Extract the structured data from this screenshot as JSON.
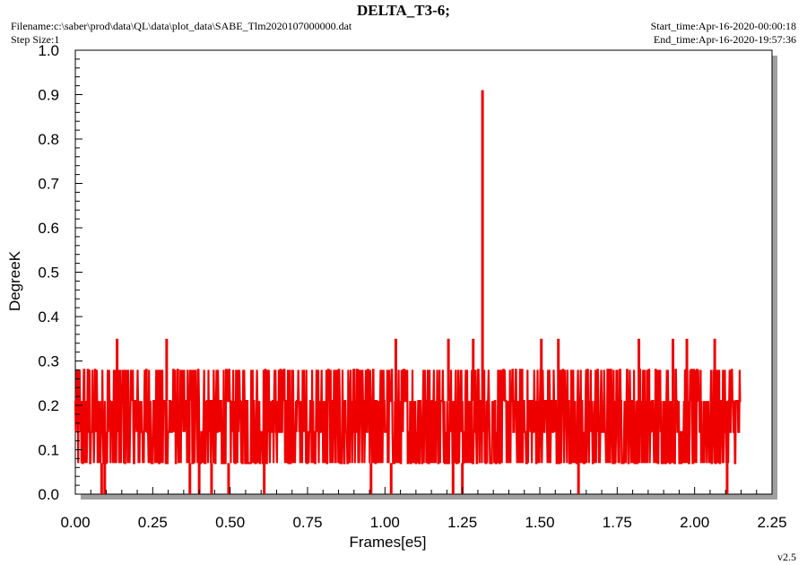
{
  "header": {
    "title": "DELTA_T3-6;",
    "filename": "Filename:c:\\saber\\prod\\data\\QL\\data\\plot_data\\SABE_Tlm2020107000000.dat",
    "step_size": "Step Size:1",
    "start_time": "Start_time:Apr-16-2020-00:00:18",
    "end_time": "End_time:Apr-16-2020-19:57:36",
    "version": "v2.5"
  },
  "colors": {
    "series": "#ee0000",
    "plot_shadow": "#a0a0a0",
    "axis": "#000000"
  },
  "chart_data": {
    "type": "line",
    "title": "DELTA_T3-6;",
    "xlabel": "Frames[e5]",
    "ylabel": "DegreeK",
    "xlim": [
      0,
      2.25
    ],
    "ylim": [
      0,
      1.0
    ],
    "x_ticks": [
      "0.00",
      "0.25",
      "0.50",
      "0.75",
      "1.00",
      "1.25",
      "1.50",
      "1.75",
      "2.00",
      "2.25"
    ],
    "y_ticks": [
      "0.0",
      "0.1",
      "0.2",
      "0.3",
      "0.4",
      "0.5",
      "0.6",
      "0.7",
      "0.8",
      "0.9",
      "1.0"
    ],
    "grid": false,
    "series": [
      {
        "x_range": [
          0.0,
          2.15
        ],
        "quantized_levels": [
          0.0,
          0.07,
          0.14,
          0.21,
          0.28,
          0.35
        ],
        "noise_band": [
          0.07,
          0.28
        ],
        "spikes": [
          {
            "x": 0.135,
            "y": 0.35
          },
          {
            "x": 0.295,
            "y": 0.35
          },
          {
            "x": 1.035,
            "y": 0.35
          },
          {
            "x": 1.205,
            "y": 0.35
          },
          {
            "x": 1.285,
            "y": 0.35
          },
          {
            "x": 1.315,
            "y": 0.91
          },
          {
            "x": 1.505,
            "y": 0.35
          },
          {
            "x": 1.56,
            "y": 0.35
          },
          {
            "x": 1.82,
            "y": 0.35
          },
          {
            "x": 1.93,
            "y": 0.35
          },
          {
            "x": 1.975,
            "y": 0.35
          },
          {
            "x": 2.065,
            "y": 0.35
          }
        ],
        "dips": [
          {
            "x": 0.085,
            "y": 0.0
          },
          {
            "x": 0.095,
            "y": 0.0
          },
          {
            "x": 0.37,
            "y": 0.0
          },
          {
            "x": 0.4,
            "y": 0.0
          },
          {
            "x": 0.44,
            "y": 0.0
          },
          {
            "x": 0.495,
            "y": 0.0
          },
          {
            "x": 0.61,
            "y": 0.0
          },
          {
            "x": 0.955,
            "y": 0.0
          },
          {
            "x": 1.02,
            "y": 0.0
          },
          {
            "x": 1.22,
            "y": 0.0
          },
          {
            "x": 1.25,
            "y": 0.0
          },
          {
            "x": 1.625,
            "y": 0.0
          },
          {
            "x": 2.105,
            "y": 0.0
          }
        ]
      }
    ]
  }
}
